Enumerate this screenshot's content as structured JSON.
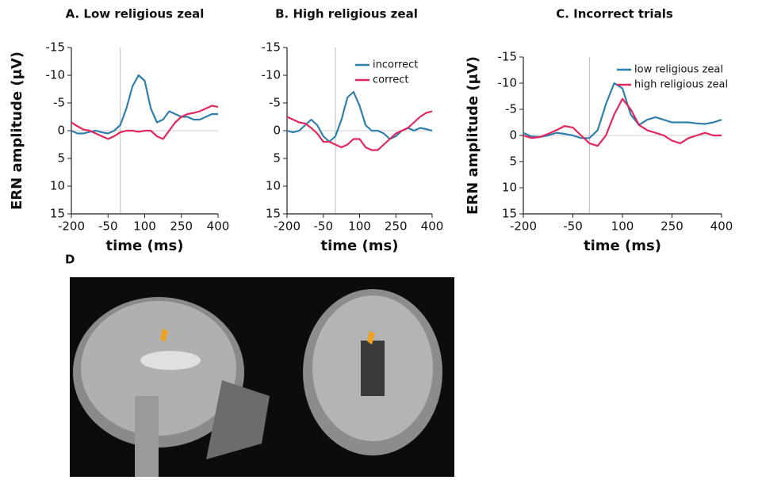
{
  "chart_data": [
    {
      "type": "line",
      "title": "A. Low religious zeal",
      "xlabel": "time (ms)",
      "ylabel": "ERN amplitude (μV)",
      "x": [
        -200,
        -175,
        -150,
        -125,
        -100,
        -75,
        -50,
        -25,
        0,
        25,
        50,
        75,
        100,
        125,
        150,
        175,
        200,
        225,
        250,
        275,
        300,
        325,
        350,
        375,
        400
      ],
      "xlim": [
        -200,
        400
      ],
      "xticks": [
        -200,
        -50,
        100,
        250,
        400
      ],
      "ylim": [
        -15,
        15
      ],
      "yticks": [
        -15,
        -10,
        -5,
        0,
        5,
        10,
        15
      ],
      "y_inverted": true,
      "series": [
        {
          "color": "#2f7fac",
          "values": [
            0,
            0.5,
            0.5,
            0.2,
            0,
            0.3,
            0.5,
            0,
            -1,
            -4,
            -8,
            -10,
            -9,
            -4,
            -1.5,
            -2,
            -3.5,
            -3,
            -2.5,
            -2.5,
            -2,
            -2,
            -2.5,
            -3,
            -3
          ]
        },
        {
          "color": "#e2275c",
          "values": [
            -1.5,
            -0.8,
            -0.2,
            0,
            0.5,
            1,
            1.5,
            1,
            0.3,
            0,
            0,
            0.2,
            0,
            0,
            1,
            1.5,
            0,
            -1.5,
            -2.5,
            -3,
            -3.2,
            -3.5,
            -4,
            -4.5,
            -4.3
          ]
        }
      ]
    },
    {
      "type": "line",
      "title": "B. High religious zeal",
      "xlabel": "time (ms)",
      "x": [
        -200,
        -175,
        -150,
        -125,
        -100,
        -75,
        -50,
        -25,
        0,
        25,
        50,
        75,
        100,
        125,
        150,
        175,
        200,
        225,
        250,
        275,
        300,
        325,
        350,
        375,
        400
      ],
      "xlim": [
        -200,
        400
      ],
      "xticks": [
        -200,
        -50,
        100,
        250,
        400
      ],
      "ylim": [
        -15,
        15
      ],
      "yticks": [
        -15,
        -10,
        -5,
        0,
        5,
        10,
        15
      ],
      "y_inverted": true,
      "legend": "upper right",
      "series": [
        {
          "name": "incorrect",
          "color": "#2f7fac",
          "values": [
            0,
            0.3,
            0,
            -1,
            -2,
            -1,
            1,
            2,
            1,
            -2,
            -6,
            -7,
            -4.5,
            -1,
            0,
            0,
            0.5,
            1.5,
            1,
            0,
            -0.5,
            0,
            -0.5,
            -0.3,
            0
          ]
        },
        {
          "name": "correct",
          "color": "#e2275c",
          "values": [
            -2.5,
            -2,
            -1.5,
            -1.3,
            -0.5,
            0.5,
            2,
            2,
            2.5,
            3,
            2.5,
            1.5,
            1.5,
            3,
            3.5,
            3.5,
            2.5,
            1.5,
            0.5,
            0,
            -0.5,
            -1.5,
            -2.5,
            -3.2,
            -3.5
          ]
        }
      ]
    },
    {
      "type": "line",
      "title": "C. Incorrect trials",
      "xlabel": "time (ms)",
      "ylabel": "ERN amplitude (μV)",
      "x": [
        -200,
        -175,
        -150,
        -125,
        -100,
        -75,
        -50,
        -25,
        0,
        25,
        50,
        75,
        100,
        125,
        150,
        175,
        200,
        225,
        250,
        275,
        300,
        325,
        350,
        375,
        400
      ],
      "xlim": [
        -200,
        400
      ],
      "xticks": [
        -200,
        -50,
        100,
        250,
        400
      ],
      "ylim": [
        -15,
        15
      ],
      "yticks": [
        -15,
        -10,
        -5,
        0,
        5,
        10,
        15
      ],
      "y_inverted": true,
      "legend": "upper right",
      "series": [
        {
          "name": "low religious zeal",
          "color": "#2f7fac",
          "values": [
            -0.5,
            0.2,
            0.3,
            0,
            -0.5,
            -0.3,
            0,
            0.5,
            0.5,
            -1,
            -6,
            -10,
            -9,
            -4,
            -2,
            -3,
            -3.5,
            -3,
            -2.5,
            -2.5,
            -2.5,
            -2.3,
            -2.2,
            -2.5,
            -3
          ]
        },
        {
          "name": "high religious zeal",
          "color": "#e2275c",
          "values": [
            0,
            0.5,
            0.3,
            -0.3,
            -1,
            -1.8,
            -1.5,
            0,
            1.5,
            2,
            0,
            -4,
            -7,
            -5,
            -2,
            -1,
            -0.5,
            0,
            1,
            1.5,
            0.5,
            0,
            -0.5,
            0,
            0
          ]
        }
      ]
    }
  ],
  "panel_d": {
    "label": "D"
  }
}
